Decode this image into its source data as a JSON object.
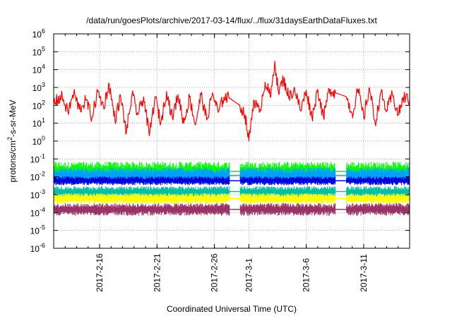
{
  "chart_data": {
    "type": "line",
    "title": "/data/run/goesPlots/archive/2017-03-14/flux/../flux/31daysEarthDataFluxes.txt",
    "xlabel": "Coordinated Universal Time (UTC)",
    "ylabel_parts": {
      "base": "protons/cm",
      "sup": "2",
      "rest": "-s-sr-MeV"
    },
    "y_scale": "log",
    "ylim": [
      1e-06,
      1000000.0
    ],
    "y_ticks": [
      {
        "value": 1e-06,
        "base": "10",
        "exp": "-6"
      },
      {
        "value": 1e-05,
        "base": "10",
        "exp": "-5"
      },
      {
        "value": 0.0001,
        "base": "10",
        "exp": "-4"
      },
      {
        "value": 0.001,
        "base": "10",
        "exp": "-3"
      },
      {
        "value": 0.01,
        "base": "10",
        "exp": "-2"
      },
      {
        "value": 0.1,
        "base": "10",
        "exp": "-1"
      },
      {
        "value": 1.0,
        "base": "10",
        "exp": "0"
      },
      {
        "value": 10.0,
        "base": "10",
        "exp": "1"
      },
      {
        "value": 100.0,
        "base": "10",
        "exp": "2"
      },
      {
        "value": 1000.0,
        "base": "10",
        "exp": "3"
      },
      {
        "value": 10000.0,
        "base": "10",
        "exp": "4"
      },
      {
        "value": 100000.0,
        "base": "10",
        "exp": "5"
      },
      {
        "value": 1000000.0,
        "base": "10",
        "exp": "6"
      }
    ],
    "x_start": "2017-02-12T00:00:00",
    "x_end": "2017-03-15T00:00:00",
    "x_ticks": [
      {
        "date": "2017-02-16T00:00:00",
        "label": "2017-2-16"
      },
      {
        "date": "2017-02-21T00:00:00",
        "label": "2017-2-21"
      },
      {
        "date": "2017-02-26T00:00:00",
        "label": "2017-2-26"
      },
      {
        "date": "2017-03-01T00:00:00",
        "label": "2017-3-1"
      },
      {
        "date": "2017-03-06T00:00:00",
        "label": "2017-3-6"
      },
      {
        "date": "2017-03-11T00:00:00",
        "label": "2017-3-11"
      }
    ],
    "minor_x_tick_step_days": 1,
    "grid": true,
    "legend": "none",
    "data_gaps": [
      {
        "start": "2017-02-27T08:00:00",
        "end": "2017-02-28T05:00:00"
      },
      {
        "start": "2017-03-08T13:00:00",
        "end": "2017-03-09T12:00:00"
      }
    ],
    "series": [
      {
        "color": "#ff0000",
        "style": "noisy line",
        "points": [
          [
            "2017-02-12T00:00",
            150
          ],
          [
            "2017-02-12T18:00",
            300
          ],
          [
            "2017-02-13T06:00",
            40
          ],
          [
            "2017-02-13T18:00",
            500
          ],
          [
            "2017-02-14T06:00",
            60
          ],
          [
            "2017-02-14T20:00",
            200
          ],
          [
            "2017-02-15T08:00",
            20
          ],
          [
            "2017-02-15T20:00",
            600
          ],
          [
            "2017-02-16T08:00",
            80
          ],
          [
            "2017-02-16T20:00",
            1500
          ],
          [
            "2017-02-17T08:00",
            15
          ],
          [
            "2017-02-17T20:00",
            300
          ],
          [
            "2017-02-18T08:00",
            3
          ],
          [
            "2017-02-18T20:00",
            400
          ],
          [
            "2017-02-19T08:00",
            30
          ],
          [
            "2017-02-19T20:00",
            300
          ],
          [
            "2017-02-20T08:00",
            2
          ],
          [
            "2017-02-20T20:00",
            300
          ],
          [
            "2017-02-21T08:00",
            10
          ],
          [
            "2017-02-21T20:00",
            600
          ],
          [
            "2017-02-22T08:00",
            20
          ],
          [
            "2017-02-22T20:00",
            400
          ],
          [
            "2017-02-23T08:00",
            10
          ],
          [
            "2017-02-23T20:00",
            300
          ],
          [
            "2017-02-24T08:00",
            8
          ],
          [
            "2017-02-24T20:00",
            400
          ],
          [
            "2017-02-25T08:00",
            15
          ],
          [
            "2017-02-25T20:00",
            500
          ],
          [
            "2017-02-26T08:00",
            40
          ],
          [
            "2017-02-26T20:00",
            300
          ],
          [
            "2017-02-27T08:00",
            250
          ],
          [
            "2017-02-28T05:00",
            100
          ],
          [
            "2017-02-28T16:00",
            30
          ],
          [
            "2017-03-01T00:00",
            1
          ],
          [
            "2017-03-01T10:00",
            200
          ],
          [
            "2017-03-01T22:00",
            40
          ],
          [
            "2017-03-02T10:00",
            2000
          ],
          [
            "2017-03-02T22:00",
            300
          ],
          [
            "2017-03-03T06:00",
            30000
          ],
          [
            "2017-03-03T14:00",
            500
          ],
          [
            "2017-03-04T00:00",
            3000
          ],
          [
            "2017-03-04T12:00",
            300
          ],
          [
            "2017-03-05T00:00",
            800
          ],
          [
            "2017-03-05T12:00",
            50
          ],
          [
            "2017-03-06T00:00",
            700
          ],
          [
            "2017-03-06T12:00",
            20
          ],
          [
            "2017-03-07T00:00",
            800
          ],
          [
            "2017-03-07T12:00",
            20
          ],
          [
            "2017-03-08T00:00",
            800
          ],
          [
            "2017-03-08T13:00",
            500
          ],
          [
            "2017-03-09T12:00",
            300
          ],
          [
            "2017-03-10T00:00",
            30
          ],
          [
            "2017-03-10T12:00",
            800
          ],
          [
            "2017-03-11T00:00",
            20
          ],
          [
            "2017-03-11T12:00",
            1000
          ],
          [
            "2017-03-12T00:00",
            10
          ],
          [
            "2017-03-12T12:00",
            500
          ],
          [
            "2017-03-13T00:00",
            50
          ],
          [
            "2017-03-13T12:00",
            400
          ],
          [
            "2017-03-14T00:00",
            30
          ],
          [
            "2017-03-14T12:00",
            300
          ],
          [
            "2017-03-15T00:00",
            200
          ]
        ]
      },
      {
        "color": "#00ff00",
        "style": "noisy band",
        "center": 0.02,
        "spread": 0.55
      },
      {
        "color": "#00a0ff",
        "style": "noisy band",
        "center": 0.012,
        "spread": 0.45
      },
      {
        "color": "#0000dd",
        "style": "noisy band",
        "center": 0.006,
        "spread": 0.25
      },
      {
        "color": "#00c0a0",
        "style": "noisy band",
        "center": 0.0015,
        "spread": 0.3
      },
      {
        "color": "#ffff00",
        "style": "noisy band",
        "center": 0.0006,
        "spread": 0.3
      },
      {
        "color": "#993366",
        "style": "noisy band",
        "center": 0.00015,
        "spread": 0.35
      }
    ]
  }
}
